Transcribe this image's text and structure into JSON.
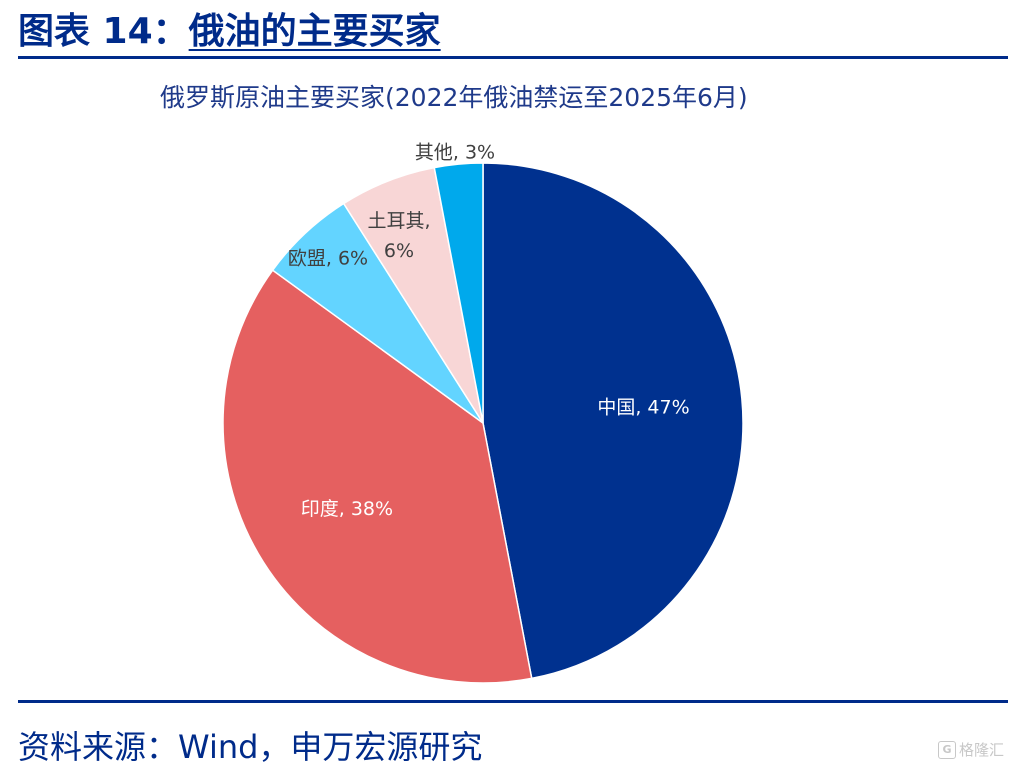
{
  "header": {
    "prefix": "图表 14：",
    "title": "俄油的主要买家"
  },
  "chart_data": {
    "type": "pie",
    "title": "俄罗斯原油主要买家(2022年俄油禁运至2025年6月)",
    "slices": [
      {
        "name": "中国",
        "value": 47,
        "label": "中国, 47%",
        "color": "#00318f",
        "label_color": "#ffffff"
      },
      {
        "name": "印度",
        "value": 38,
        "label": "印度, 38%",
        "color": "#e56060",
        "label_color": "#ffffff"
      },
      {
        "name": "欧盟",
        "value": 6,
        "label": "欧盟, 6%",
        "color": "#63d4ff",
        "label_color": "#404040"
      },
      {
        "name": "土耳其",
        "value": 6,
        "label_lines": [
          "土耳其,",
          "6%"
        ],
        "color": "#f8d6d6",
        "label_color": "#404040"
      },
      {
        "name": "其他",
        "value": 3,
        "label": "其他, 3%",
        "color": "#00a9ec",
        "label_color": "#404040"
      }
    ]
  },
  "footer": {
    "source": "资料来源：Wind，申万宏源研究"
  },
  "watermark": {
    "badge": "G",
    "text": "格隆汇"
  }
}
